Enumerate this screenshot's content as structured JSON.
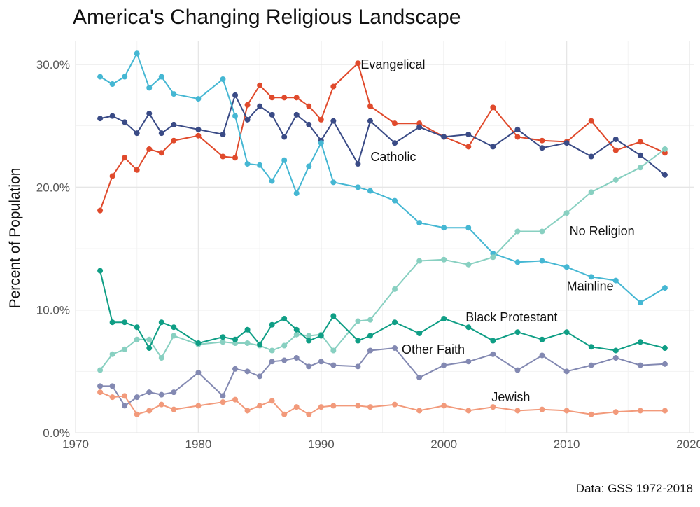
{
  "chart_data": {
    "type": "line",
    "title": "America's Changing Religious Landscape",
    "xlabel": "",
    "ylabel": "Percent of Population",
    "caption": "Data: GSS 1972-2018",
    "xlim": [
      1970,
      2020
    ],
    "ylim": [
      0,
      30
    ],
    "x_ticks": [
      "1970",
      "1980",
      "1990",
      "2000",
      "2010",
      "2020"
    ],
    "y_ticks": [
      "0.0%",
      "10.0%",
      "20.0%",
      "30.0%"
    ],
    "grid": true,
    "legend": "none (direct labels)",
    "x": [
      1972,
      1973,
      1974,
      1975,
      1976,
      1977,
      1978,
      1980,
      1982,
      1983,
      1984,
      1985,
      1986,
      1987,
      1988,
      1989,
      1990,
      1991,
      1993,
      1994,
      1996,
      1998,
      2000,
      2002,
      2004,
      2006,
      2008,
      2010,
      2012,
      2014,
      2016,
      2018
    ],
    "series": [
      {
        "name": "Evangelical",
        "color": "#e04a2c",
        "values": [
          18.1,
          20.9,
          22.4,
          21.4,
          23.1,
          22.8,
          23.8,
          24.2,
          22.5,
          22.4,
          26.7,
          28.3,
          27.3,
          27.3,
          27.3,
          26.6,
          25.5,
          28.2,
          30.1,
          26.6,
          25.2,
          25.2,
          24.1,
          23.3,
          26.5,
          24.1,
          23.8,
          23.7,
          25.4,
          23.0,
          23.7,
          22.8
        ]
      },
      {
        "name": "Catholic",
        "color": "#3a4b86",
        "values": [
          25.6,
          25.8,
          25.3,
          24.4,
          26.0,
          24.4,
          25.1,
          24.7,
          24.3,
          27.5,
          25.5,
          26.6,
          25.9,
          24.1,
          25.9,
          25.1,
          23.8,
          25.4,
          21.9,
          25.4,
          23.6,
          24.9,
          24.1,
          24.3,
          23.3,
          24.7,
          23.2,
          23.6,
          22.5,
          23.9,
          22.6,
          21.0
        ]
      },
      {
        "name": "Mainline",
        "color": "#45b7d3",
        "values": [
          29.0,
          28.4,
          29.0,
          30.9,
          28.1,
          29.0,
          27.6,
          27.2,
          28.8,
          25.8,
          21.9,
          21.8,
          20.5,
          22.2,
          19.5,
          21.7,
          23.6,
          20.4,
          20.0,
          19.7,
          18.9,
          17.1,
          16.7,
          16.7,
          14.6,
          13.9,
          14.0,
          13.5,
          12.7,
          12.4,
          10.6,
          11.8
        ]
      },
      {
        "name": "No Religion",
        "color": "#88d0c1",
        "values": [
          5.1,
          6.4,
          6.8,
          7.6,
          7.6,
          6.1,
          7.9,
          7.2,
          7.4,
          7.3,
          7.3,
          7.1,
          6.7,
          7.1,
          8.0,
          7.9,
          8.0,
          6.7,
          9.1,
          9.2,
          11.7,
          14.0,
          14.1,
          13.7,
          14.3,
          16.4,
          16.4,
          17.9,
          19.6,
          20.6,
          21.6,
          23.1
        ]
      },
      {
        "name": "Black Protestant",
        "color": "#0f9e85",
        "values": [
          13.2,
          9.0,
          9.0,
          8.6,
          6.9,
          9.0,
          8.6,
          7.3,
          7.8,
          7.6,
          8.4,
          7.2,
          8.8,
          9.3,
          8.4,
          7.5,
          7.9,
          9.5,
          7.5,
          7.9,
          9.0,
          8.1,
          9.3,
          8.6,
          7.5,
          8.2,
          7.6,
          8.2,
          7.0,
          6.7,
          7.4,
          6.9
        ]
      },
      {
        "name": "Other Faith",
        "color": "#8389b2",
        "values": [
          3.8,
          3.8,
          2.2,
          2.9,
          3.3,
          3.1,
          3.3,
          4.9,
          3.0,
          5.2,
          5.0,
          4.6,
          5.8,
          5.9,
          6.1,
          5.4,
          5.8,
          5.5,
          5.4,
          6.7,
          6.9,
          4.5,
          5.5,
          5.8,
          6.4,
          5.1,
          6.3,
          5.0,
          5.5,
          6.1,
          5.5,
          5.6
        ]
      },
      {
        "name": "Jewish",
        "color": "#f29a7b",
        "values": [
          3.3,
          2.9,
          3.0,
          1.5,
          1.8,
          2.3,
          1.9,
          2.2,
          2.5,
          2.7,
          1.8,
          2.2,
          2.6,
          1.5,
          2.1,
          1.5,
          2.1,
          2.2,
          2.2,
          2.1,
          2.3,
          1.8,
          2.2,
          1.8,
          2.1,
          1.8,
          1.9,
          1.8,
          1.5,
          1.7,
          1.8,
          1.8
        ]
      }
    ]
  }
}
